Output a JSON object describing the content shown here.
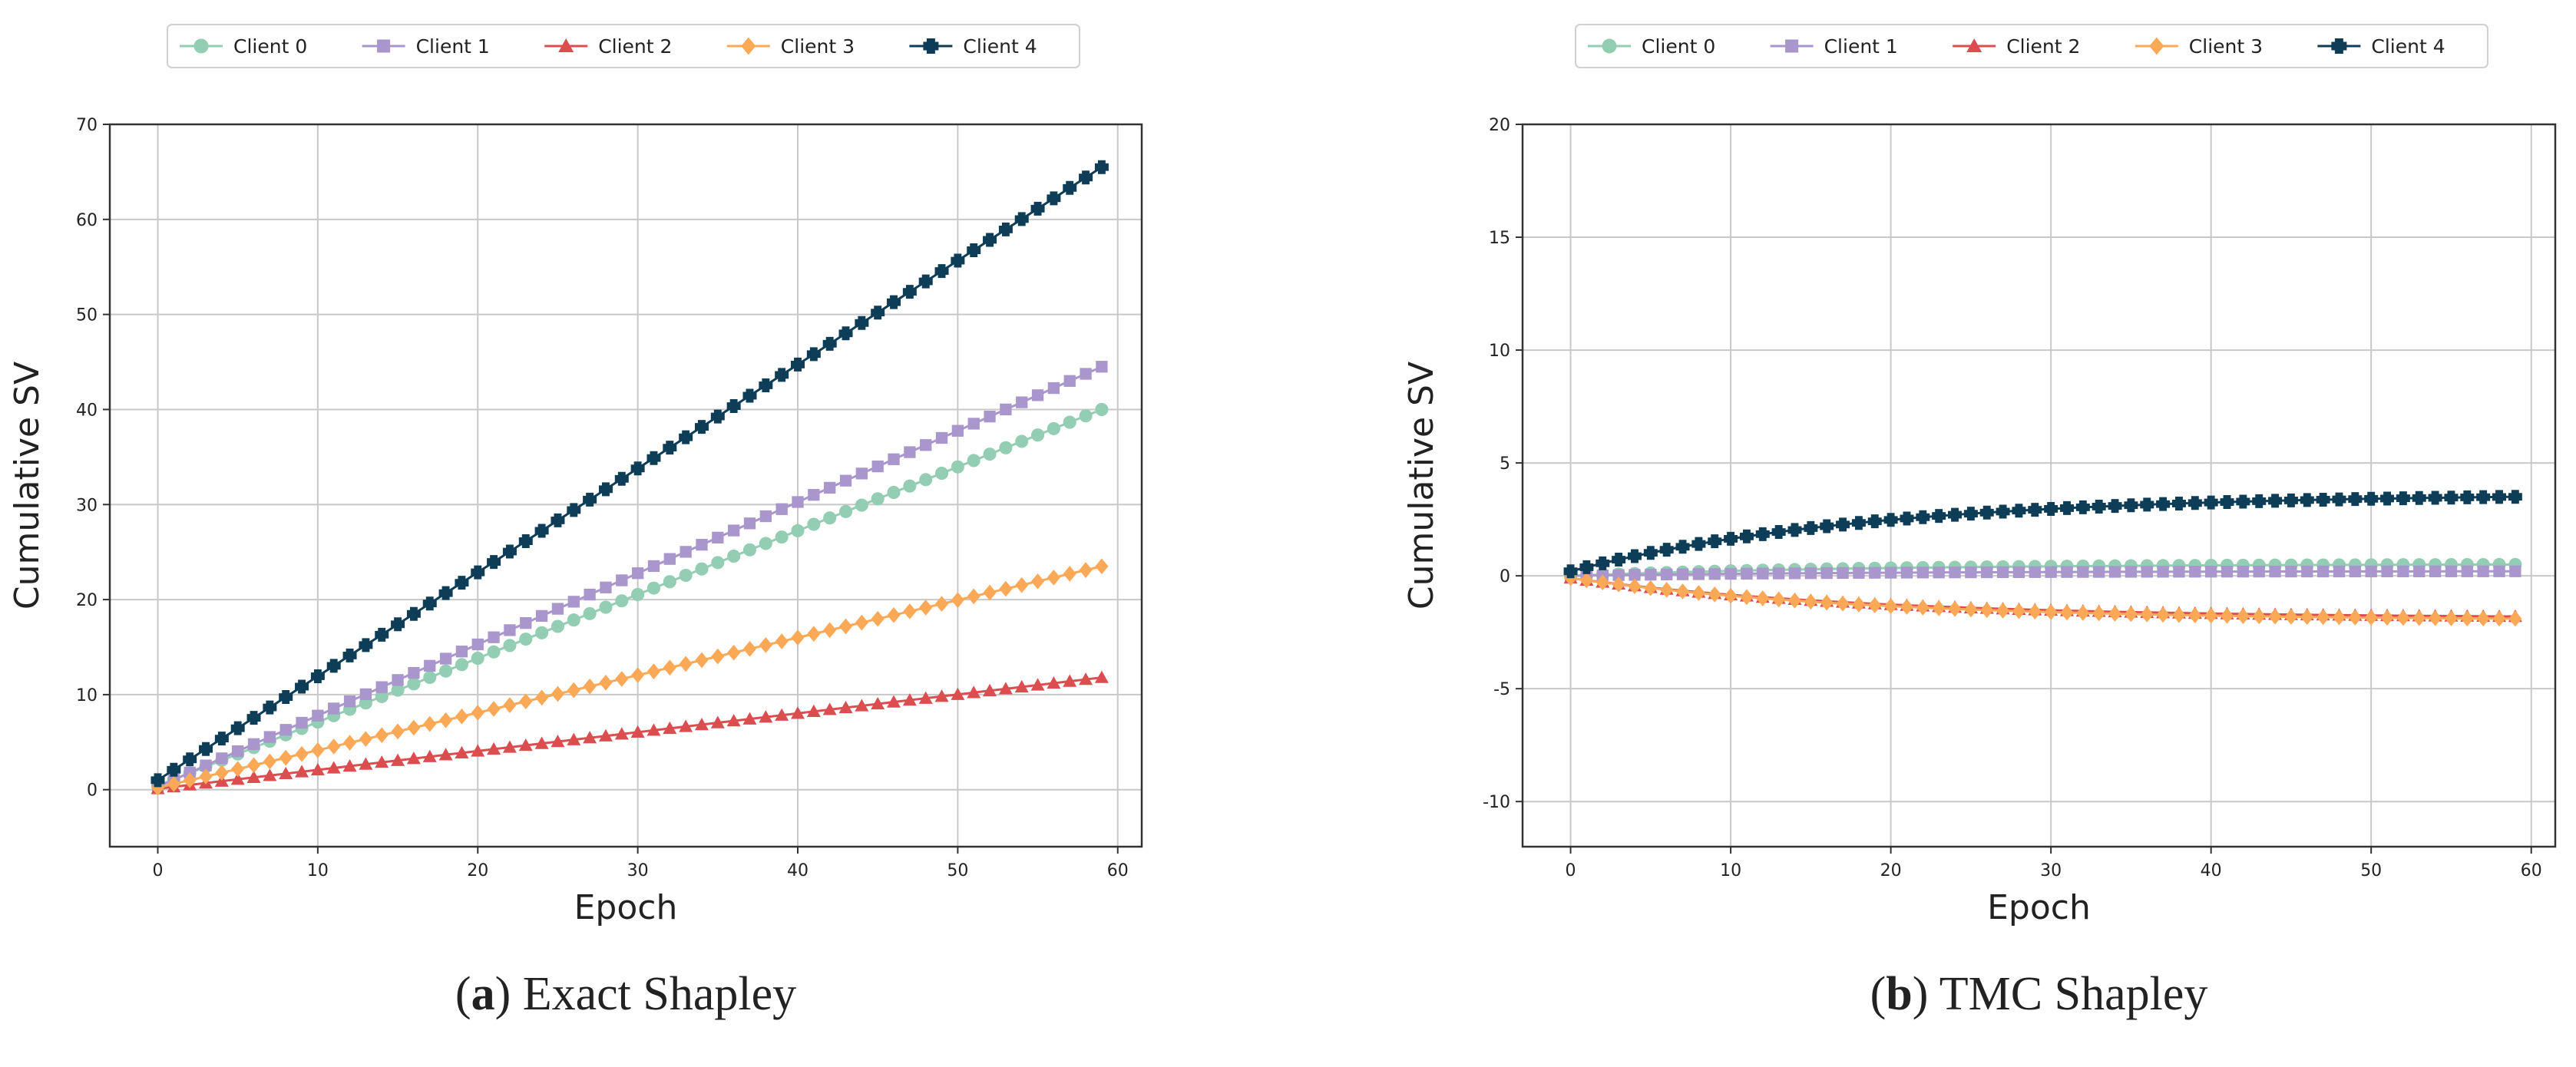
{
  "colors": {
    "Client 0": "#93cdb3",
    "Client 1": "#a896cd",
    "Client 2": "#dc4d50",
    "Client 3": "#fba957",
    "Client 4": "#0e3d58",
    "grid": "#c8c8c8",
    "frame": "#333333"
  },
  "markers": {
    "Client 0": "circle",
    "Client 1": "square",
    "Client 2": "triangle",
    "Client 3": "diamond",
    "Client 4": "plus"
  },
  "chart_data": [
    {
      "type": "line",
      "caption_label": "a",
      "caption_text": "Exact Shapley",
      "xlabel": "Epoch",
      "ylabel": "Cumulative SV",
      "xlim": [
        -3,
        61.5
      ],
      "ylim": [
        -6,
        70
      ],
      "xticks": [
        0,
        10,
        20,
        30,
        40,
        50,
        60
      ],
      "yticks": [
        0,
        10,
        20,
        30,
        40,
        50,
        60,
        70
      ],
      "grid": true,
      "legend_position": "top-center",
      "epochs": 60,
      "series": [
        {
          "name": "Client 0",
          "start": 0.4,
          "end": 40.0,
          "shape": "linear"
        },
        {
          "name": "Client 1",
          "start": 0.3,
          "end": 44.5,
          "shape": "linear"
        },
        {
          "name": "Client 2",
          "start": 0.1,
          "end": 11.8,
          "shape": "linear"
        },
        {
          "name": "Client 3",
          "start": 0.2,
          "end": 23.5,
          "shape": "linear"
        },
        {
          "name": "Client 4",
          "start": 1.0,
          "end": 65.5,
          "shape": "linear"
        }
      ]
    },
    {
      "type": "line",
      "caption_label": "b",
      "caption_text": "TMC Shapley",
      "xlabel": "Epoch",
      "ylabel": "Cumulative SV",
      "xlim": [
        -3,
        61.5
      ],
      "ylim": [
        -12,
        20
      ],
      "xticks": [
        0,
        10,
        20,
        30,
        40,
        50,
        60
      ],
      "yticks": [
        -10,
        -5,
        0,
        5,
        10,
        15,
        20
      ],
      "grid": true,
      "legend_position": "top-center",
      "epochs": 60,
      "series": [
        {
          "name": "Client 0",
          "start": 0.0,
          "end": 0.5,
          "shape": "saturate"
        },
        {
          "name": "Client 1",
          "start": 0.0,
          "end": 0.2,
          "shape": "saturate"
        },
        {
          "name": "Client 2",
          "start": -0.1,
          "end": -1.8,
          "shape": "saturate"
        },
        {
          "name": "Client 3",
          "start": -0.1,
          "end": -1.9,
          "shape": "saturate"
        },
        {
          "name": "Client 4",
          "start": 0.2,
          "end": 3.5,
          "shape": "saturate"
        }
      ]
    }
  ],
  "legend": [
    "Client 0",
    "Client 1",
    "Client 2",
    "Client 3",
    "Client 4"
  ]
}
